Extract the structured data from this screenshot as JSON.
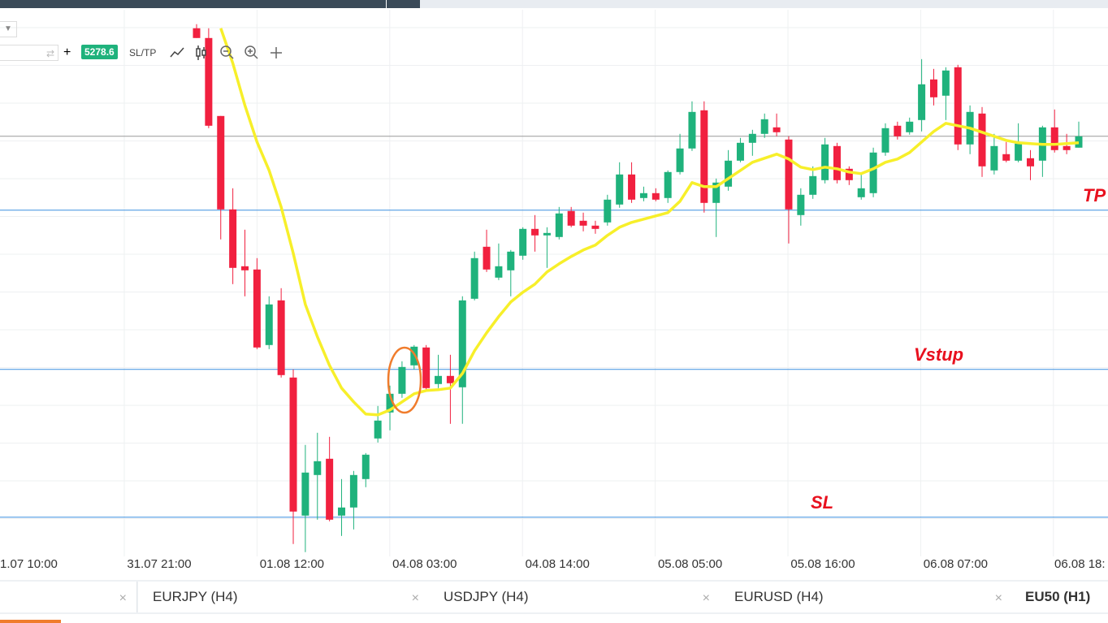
{
  "toolbar": {
    "price": "5278.6",
    "sltp": "SL/TP",
    "plus": "+"
  },
  "chart_data": {
    "type": "candlestick",
    "open": [
      5345.1,
      5339.1,
      5291.1,
      5233.6,
      5198.6,
      5196.6,
      5150.1,
      5177.6,
      5130.1,
      5045.1,
      5070.1,
      5080.1,
      5045.1,
      5050.1,
      5067.6,
      5092.6,
      5108.6,
      5120.1,
      5137.6,
      5148.6,
      5126.1,
      5131.1,
      5124.1,
      5178.6,
      5210.6,
      5191.6,
      5196.1,
      5205.1,
      5221.6,
      5217.6,
      5216.6,
      5232.6,
      5226.6,
      5223.6,
      5225.6,
      5236.6,
      5255.1,
      5240.6,
      5243.6,
      5240.6,
      5256.6,
      5271.1,
      5294.6,
      5237.6,
      5247.6,
      5263.6,
      5274.6,
      5280.1,
      5284.1,
      5276.6,
      5230.1,
      5242.6,
      5251.6,
      5272.6,
      5258.6,
      5241.1,
      5243.6,
      5268.6,
      5285.1,
      5281.1,
      5288.6,
      5313.6,
      5303.6,
      5321.1,
      5273.6,
      5292.6,
      5257.6,
      5267.6,
      5263.6,
      5265.1,
      5263.6,
      5284.1,
      5272.6,
      5271.6
    ],
    "high": [
      5347.6,
      5345.1,
      5291.1,
      5246.6,
      5221.1,
      5203.6,
      5180.1,
      5185.1,
      5135.1,
      5088.6,
      5096.1,
      5093.6,
      5067.6,
      5072.6,
      5083.6,
      5112.6,
      5125.1,
      5140.1,
      5150.1,
      5150.1,
      5144.1,
      5144.1,
      5180.1,
      5207.6,
      5221.1,
      5212.6,
      5208.6,
      5222.6,
      5230.1,
      5222.6,
      5235.1,
      5235.1,
      5231.6,
      5226.6,
      5242.6,
      5262.6,
      5262.6,
      5247.6,
      5246.6,
      5257.6,
      5280.1,
      5300.1,
      5300.1,
      5252.6,
      5270.1,
      5277.6,
      5282.6,
      5292.6,
      5292.6,
      5278.6,
      5246.6,
      5260.1,
      5277.6,
      5274.6,
      5260.1,
      5255.1,
      5271.6,
      5286.6,
      5287.6,
      5290.1,
      5326.1,
      5320.1,
      5321.1,
      5322.6,
      5297.6,
      5296.6,
      5280.1,
      5275.1,
      5286.6,
      5270.1,
      5285.1,
      5295.1,
      5280.1,
      5287.6
    ],
    "low": [
      5339.1,
      5283.6,
      5215.1,
      5187.6,
      5180.1,
      5147.6,
      5147.6,
      5130.1,
      5027.6,
      5022.6,
      5042.6,
      5041.6,
      5032.6,
      5036.6,
      5062.6,
      5090.1,
      5097.6,
      5117.6,
      5135.1,
      5122.6,
      5123.6,
      5101.6,
      5101.6,
      5177.6,
      5195.1,
      5190.1,
      5180.1,
      5202.6,
      5207.6,
      5197.6,
      5215.1,
      5222.6,
      5220.1,
      5218.6,
      5223.6,
      5234.6,
      5237.6,
      5238.6,
      5238.6,
      5237.6,
      5255.1,
      5269.6,
      5231.6,
      5216.6,
      5245.1,
      5262.6,
      5266.6,
      5277.6,
      5278.6,
      5212.6,
      5223.6,
      5240.1,
      5249.6,
      5249.6,
      5248.6,
      5239.6,
      5241.1,
      5266.6,
      5276.6,
      5279.6,
      5281.6,
      5297.6,
      5288.6,
      5270.1,
      5267.6,
      5253.6,
      5255.1,
      5262.6,
      5262.6,
      5251.6,
      5253.6,
      5268.6,
      5267.6,
      5271.6
    ],
    "close": [
      5339.1,
      5285.1,
      5233.6,
      5197.6,
      5196.1,
      5148.6,
      5175.1,
      5131.6,
      5047.6,
      5071.6,
      5078.6,
      5042.6,
      5050.1,
      5070.1,
      5082.6,
      5103.6,
      5120.1,
      5136.6,
      5149.1,
      5123.6,
      5131.1,
      5126.6,
      5177.6,
      5203.6,
      5196.6,
      5198.6,
      5207.6,
      5221.6,
      5217.6,
      5219.1,
      5231.1,
      5223.6,
      5223.6,
      5221.6,
      5239.6,
      5255.1,
      5239.6,
      5243.6,
      5239.6,
      5256.6,
      5271.1,
      5293.6,
      5237.6,
      5250.1,
      5263.6,
      5274.6,
      5280.1,
      5289.1,
      5281.1,
      5233.6,
      5242.6,
      5254.1,
      5273.6,
      5251.6,
      5251.6,
      5246.6,
      5268.6,
      5283.6,
      5278.6,
      5287.6,
      5310.6,
      5302.6,
      5319.1,
      5273.6,
      5293.6,
      5260.1,
      5272.6,
      5263.6,
      5274.1,
      5260.1,
      5284.1,
      5270.1,
      5270.1,
      5278.6
    ],
    "up_color": "#1fb27c",
    "down_color": "#f1203f",
    "ma": {
      "color": "#f7ef2a",
      "values": [
        null,
        null,
        5345.1,
        5323.6,
        5297.6,
        5275.1,
        5257.6,
        5235.1,
        5206.6,
        5175.1,
        5155.1,
        5137.6,
        5123.6,
        5115.1,
        5107.6,
        5107.1,
        5110.1,
        5115.1,
        5120.1,
        5122.1,
        5122.6,
        5123.6,
        5132.6,
        5146.6,
        5157.6,
        5167.6,
        5176.6,
        5182.6,
        5187.6,
        5195.1,
        5200.1,
        5204.6,
        5208.6,
        5211.6,
        5217.6,
        5222.6,
        5225.6,
        5227.6,
        5229.6,
        5231.6,
        5238.6,
        5250.1,
        5247.6,
        5247.6,
        5252.6,
        5257.6,
        5262.6,
        5265.1,
        5267.6,
        5264.6,
        5259.6,
        5258.1,
        5259.6,
        5258.6,
        5256.6,
        5255.6,
        5258.6,
        5262.6,
        5264.6,
        5268.6,
        5275.1,
        5281.6,
        5286.6,
        5285.1,
        5283.6,
        5281.1,
        5278.6,
        5276.1,
        5274.6,
        5274.1,
        5273.6,
        5273.6,
        5274.1,
        5274.6
      ]
    },
    "last_price": 5278.6,
    "levels": [
      {
        "label": "TP",
        "value": 5233.1
      },
      {
        "label": "Vstup",
        "value": 5135.1
      },
      {
        "label": "SL",
        "value": 5044.1
      }
    ],
    "ylim": [
      5020,
      5360
    ],
    "xtick_labels": [
      "1.07 10:00",
      "31.07 21:00",
      "01.08 12:00",
      "04.08 03:00",
      "04.08 14:00",
      "05.08 05:00",
      "05.08 16:00",
      "06.08 07:00",
      "06.08 18:"
    ]
  },
  "tabs": [
    {
      "label": "EURJPY (H4)",
      "close": "×"
    },
    {
      "label": "USDJPY (H4)",
      "close": "×"
    },
    {
      "label": "EURUSD (H4)",
      "close": "×"
    },
    {
      "label": "EU50 (H1)"
    }
  ],
  "first_tab_close": "×"
}
